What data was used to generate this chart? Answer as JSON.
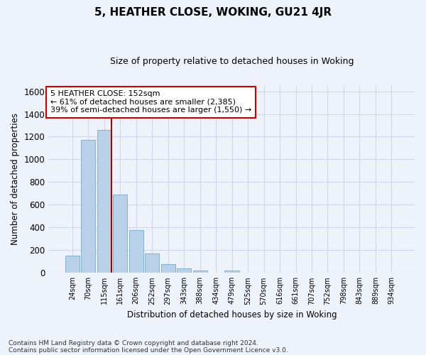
{
  "title": "5, HEATHER CLOSE, WOKING, GU21 4JR",
  "subtitle": "Size of property relative to detached houses in Woking",
  "xlabel": "Distribution of detached houses by size in Woking",
  "ylabel": "Number of detached properties",
  "categories": [
    "24sqm",
    "70sqm",
    "115sqm",
    "161sqm",
    "206sqm",
    "252sqm",
    "297sqm",
    "343sqm",
    "388sqm",
    "434sqm",
    "479sqm",
    "525sqm",
    "570sqm",
    "616sqm",
    "661sqm",
    "707sqm",
    "752sqm",
    "798sqm",
    "843sqm",
    "889sqm",
    "934sqm"
  ],
  "values": [
    150,
    1170,
    1260,
    690,
    375,
    170,
    80,
    37,
    20,
    0,
    20,
    0,
    0,
    0,
    0,
    0,
    0,
    0,
    0,
    0,
    0
  ],
  "bar_color": "#b8d0e8",
  "bar_edge_color": "#7aaac8",
  "vline_color": "#aa0000",
  "annotation_text": "5 HEATHER CLOSE: 152sqm\n← 61% of detached houses are smaller (2,385)\n39% of semi-detached houses are larger (1,550) →",
  "annotation_box_facecolor": "#ffffff",
  "annotation_box_edgecolor": "#cc0000",
  "ylim": [
    0,
    1650
  ],
  "yticks": [
    0,
    200,
    400,
    600,
    800,
    1000,
    1200,
    1400,
    1600
  ],
  "grid_color": "#d0d8e8",
  "bg_color": "#eef2fa",
  "footer1": "Contains HM Land Registry data © Crown copyright and database right 2024.",
  "footer2": "Contains public sector information licensed under the Open Government Licence v3.0."
}
